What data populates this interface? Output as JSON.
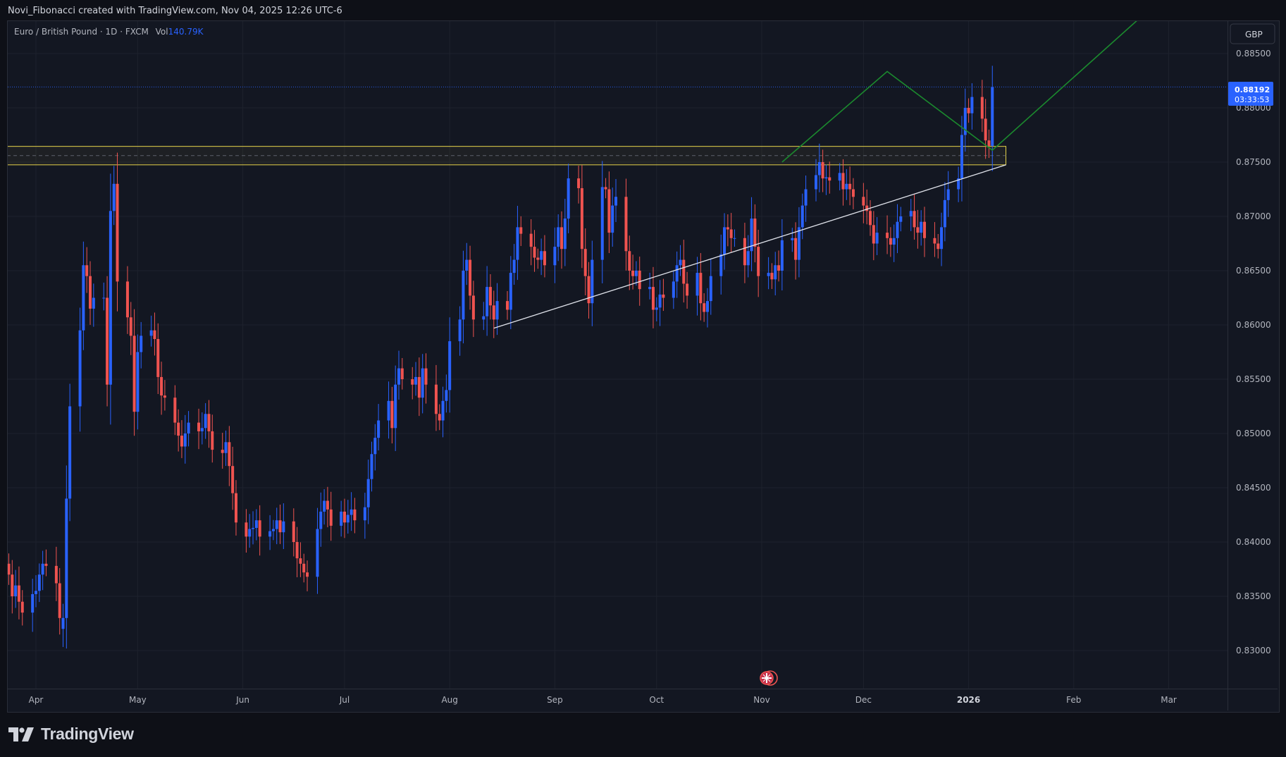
{
  "header": {
    "attribution": "Novi_Fibonacci created with TradingView.com, Nov 04, 2025 12:26 UTC-6"
  },
  "legend": {
    "symbol": "Euro / British Pound · 1D · FXCM",
    "vol_label": "Vol",
    "vol_value": "140.79K"
  },
  "currency_button": "GBP",
  "last_price": {
    "price": "0.88192",
    "countdown": "03:33:53"
  },
  "brand": {
    "name": "TradingView"
  },
  "colors": {
    "up": "#2962ff",
    "down": "#ef5350",
    "zone": "#e6d44a",
    "trendline": "#e0e3eb",
    "projection": "#1b8a2e",
    "grid": "#1e222d",
    "background": "#131722"
  },
  "chart_data": {
    "type": "candlestick",
    "title": "Euro / British Pound · 1D · FXCM",
    "ylabel": "GBP",
    "ylim": [
      0.8265,
      0.8887
    ],
    "ytick_labels": [
      "0.83000",
      "0.83500",
      "0.84000",
      "0.84500",
      "0.85000",
      "0.85500",
      "0.86000",
      "0.86500",
      "0.87000",
      "0.87500",
      "0.88000",
      "0.88500"
    ],
    "ytick_values": [
      0.83,
      0.835,
      0.84,
      0.845,
      0.85,
      0.855,
      0.86,
      0.865,
      0.87,
      0.875,
      0.88,
      0.885
    ],
    "xtick_labels": [
      {
        "label": "Apr",
        "date": "2025-04-01"
      },
      {
        "label": "May",
        "date": "2025-05-01"
      },
      {
        "label": "Jun",
        "date": "2025-06-01"
      },
      {
        "label": "Jul",
        "date": "2025-07-01"
      },
      {
        "label": "Aug",
        "date": "2025-08-01"
      },
      {
        "label": "Sep",
        "date": "2025-09-01"
      },
      {
        "label": "Oct",
        "date": "2025-10-01"
      },
      {
        "label": "Nov",
        "date": "2025-11-01"
      },
      {
        "label": "Dec",
        "date": "2025-12-01"
      },
      {
        "label": "2026",
        "date": "2026-01-01",
        "bold": true
      },
      {
        "label": "Feb",
        "date": "2026-02-01"
      },
      {
        "label": "Mar",
        "date": "2026-03-01"
      }
    ],
    "last_price": 0.88192,
    "candles": {
      "start_date": "2025-03-24",
      "close": [
        0.837,
        0.835,
        0.836,
        0.8345,
        0.8335,
        0.8352,
        0.8355,
        0.837,
        0.838,
        0.8378,
        0.8362,
        0.833,
        0.833,
        0.844,
        0.8525,
        0.8595,
        0.8655,
        0.8645,
        0.8615,
        0.8625,
        0.8625,
        0.8545,
        0.8705,
        0.873,
        0.864,
        0.8607,
        0.859,
        0.852,
        0.8575,
        0.859,
        0.8595,
        0.8587,
        0.8552,
        0.8535,
        0.8533,
        0.851,
        0.8498,
        0.8488,
        0.85,
        0.851,
        0.8502,
        0.8505,
        0.8518,
        0.8502,
        0.8485,
        0.8482,
        0.8492,
        0.847,
        0.8445,
        0.8418,
        0.8405,
        0.8412,
        0.8413,
        0.842,
        0.8405,
        0.841,
        0.8412,
        0.842,
        0.8409,
        0.8419,
        0.84,
        0.8385,
        0.838,
        0.8372,
        0.8368,
        0.8412,
        0.8428,
        0.8438,
        0.843,
        0.8415,
        0.8428,
        0.8418,
        0.8425,
        0.843,
        0.842,
        0.8432,
        0.8458,
        0.8481,
        0.8496,
        0.8512,
        0.853,
        0.8505,
        0.8545,
        0.856,
        0.855,
        0.8545,
        0.8552,
        0.8533,
        0.856,
        0.8545,
        0.8518,
        0.8512,
        0.853,
        0.854,
        0.8585,
        0.8605,
        0.865,
        0.866,
        0.8627,
        0.8605,
        0.8608,
        0.8635,
        0.8618,
        0.8605,
        0.8622,
        0.8614,
        0.8648,
        0.866,
        0.869,
        0.8684,
        0.8672,
        0.8662,
        0.866,
        0.8668,
        0.8655,
        0.8672,
        0.869,
        0.867,
        0.8698,
        0.8735,
        0.8726,
        0.867,
        0.8645,
        0.862,
        0.866,
        0.8727,
        0.8725,
        0.8685,
        0.871,
        0.8718,
        0.8668,
        0.865,
        0.8645,
        0.865,
        0.8633,
        0.8635,
        0.8614,
        0.8616,
        0.8628,
        0.8625,
        0.864,
        0.8655,
        0.866,
        0.8638,
        0.8627,
        0.8648,
        0.862,
        0.8612,
        0.8622,
        0.8645,
        0.8665,
        0.869,
        0.8688,
        0.868,
        0.868,
        0.8655,
        0.8668,
        0.8698,
        0.8672,
        0.8645,
        0.8648,
        0.8642,
        0.8655,
        0.865,
        0.8678,
        0.868,
        0.866,
        0.869,
        0.871,
        0.8725,
        0.8738,
        0.875,
        0.8735,
        0.8736,
        0.8733,
        0.874,
        0.8725,
        0.873,
        0.8725,
        0.8718,
        0.871,
        0.8705,
        0.8692,
        0.8675,
        0.8685,
        0.868,
        0.8674,
        0.868,
        0.8695,
        0.87,
        0.8705,
        0.869,
        0.8685,
        0.8695,
        0.868,
        0.8675,
        0.867,
        0.869,
        0.8715,
        0.8725,
        0.8735,
        0.8775,
        0.88,
        0.8795,
        0.881,
        0.879,
        0.877,
        0.8765,
        0.8819
      ],
      "open": [
        0.838,
        0.837,
        0.835,
        0.836,
        0.8345,
        0.8335,
        0.8352,
        0.8355,
        0.837,
        0.838,
        0.8378,
        0.8362,
        0.832,
        0.833,
        0.844,
        0.8525,
        0.8595,
        0.8655,
        0.8645,
        0.8615,
        0.8625,
        0.8625,
        0.8545,
        0.8705,
        0.873,
        0.864,
        0.8607,
        0.859,
        0.852,
        0.8575,
        0.859,
        0.8595,
        0.8587,
        0.8552,
        0.8535,
        0.8533,
        0.851,
        0.8498,
        0.8488,
        0.85,
        0.851,
        0.8502,
        0.8505,
        0.8518,
        0.8502,
        0.8485,
        0.8482,
        0.8492,
        0.847,
        0.8445,
        0.8418,
        0.8405,
        0.8412,
        0.8413,
        0.842,
        0.8405,
        0.841,
        0.8412,
        0.842,
        0.8409,
        0.8419,
        0.84,
        0.8385,
        0.838,
        0.8372,
        0.8368,
        0.8412,
        0.8428,
        0.8438,
        0.843,
        0.8415,
        0.8428,
        0.8418,
        0.8425,
        0.843,
        0.842,
        0.8432,
        0.8458,
        0.8481,
        0.8496,
        0.8512,
        0.853,
        0.8505,
        0.8545,
        0.856,
        0.855,
        0.8545,
        0.8552,
        0.8533,
        0.856,
        0.8545,
        0.8518,
        0.8512,
        0.853,
        0.854,
        0.8585,
        0.8605,
        0.865,
        0.866,
        0.8627,
        0.8605,
        0.8608,
        0.8635,
        0.8618,
        0.8605,
        0.8622,
        0.8614,
        0.8648,
        0.866,
        0.869,
        0.8684,
        0.8672,
        0.8662,
        0.866,
        0.8668,
        0.8655,
        0.8672,
        0.869,
        0.867,
        0.8698,
        0.8735,
        0.8726,
        0.867,
        0.8645,
        0.862,
        0.866,
        0.8727,
        0.8725,
        0.8685,
        0.871,
        0.8718,
        0.8668,
        0.865,
        0.8645,
        0.865,
        0.8633,
        0.8635,
        0.8614,
        0.8616,
        0.8628,
        0.8625,
        0.864,
        0.8655,
        0.866,
        0.8638,
        0.8627,
        0.8648,
        0.862,
        0.8612,
        0.8622,
        0.8645,
        0.8665,
        0.869,
        0.8688,
        0.868,
        0.868,
        0.8655,
        0.8668,
        0.8698,
        0.8672,
        0.8645,
        0.8648,
        0.8642,
        0.8655,
        0.865,
        0.8678,
        0.868,
        0.866,
        0.869,
        0.871,
        0.8725,
        0.8738,
        0.875,
        0.8735,
        0.8736,
        0.8733,
        0.874,
        0.8725,
        0.873,
        0.8725,
        0.8718,
        0.871,
        0.8705,
        0.8692,
        0.8675,
        0.8685,
        0.868,
        0.8674,
        0.868,
        0.8695,
        0.87,
        0.8705,
        0.869,
        0.8685,
        0.8695,
        0.868,
        0.8675,
        0.867,
        0.869,
        0.8715,
        0.8725,
        0.8735,
        0.8775,
        0.88,
        0.8795,
        0.881,
        0.879,
        0.877,
        0.8765
      ]
    },
    "zone": {
      "from_date": "2025-02-01",
      "to_date": "2026-01-12",
      "y_low": 0.87475,
      "y_high": 0.87645,
      "mid": 0.8756
    },
    "trendline": {
      "points": [
        {
          "date": "2025-08-14",
          "y": 0.8597
        },
        {
          "date": "2026-01-12",
          "y": 0.87475
        }
      ]
    },
    "projection": {
      "points": [
        {
          "date": "2025-11-07",
          "y": 0.875
        },
        {
          "date": "2025-12-08",
          "y": 0.88335
        },
        {
          "date": "2026-01-08",
          "y": 0.8761
        },
        {
          "date": "2026-02-22",
          "y": 0.8887
        }
      ]
    }
  }
}
